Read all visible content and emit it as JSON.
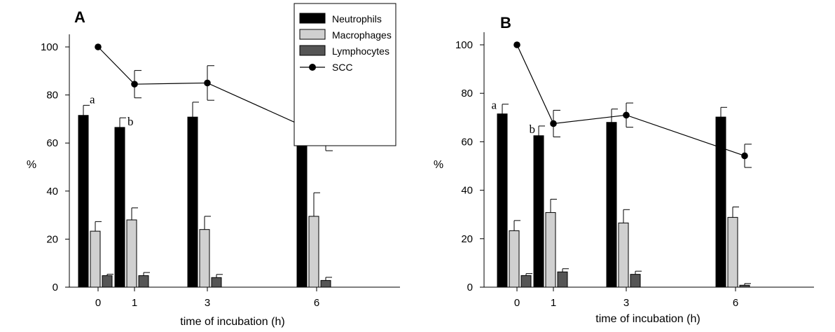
{
  "chart_data": [
    {
      "type": "bar",
      "panel_label": "A",
      "xlabel": "time of incubation (h)",
      "ylabel": "%",
      "ylim": [
        0,
        100
      ],
      "y_ticks": [
        "0",
        "20",
        "40",
        "60",
        "80",
        "100"
      ],
      "x": [
        0,
        1,
        3,
        6
      ],
      "x_tick_labels": [
        "0",
        "1",
        "3",
        "6"
      ],
      "legend_position": "top-center",
      "series": [
        {
          "name": "Neutrophils",
          "kind": "bar",
          "color": "#000000",
          "values": [
            71.5,
            66.5,
            70.8,
            67.2
          ],
          "err": [
            4.2,
            4.0,
            6.2,
            9.8
          ]
        },
        {
          "name": "Macrophages",
          "kind": "bar",
          "color": "#d0d0d0",
          "values": [
            23.3,
            28.0,
            24.0,
            29.5
          ],
          "err": [
            4.0,
            5.0,
            5.5,
            9.8
          ]
        },
        {
          "name": "Lymphocytes",
          "kind": "bar",
          "color": "#555555",
          "values": [
            4.8,
            4.8,
            4.0,
            2.8
          ],
          "err": [
            0.6,
            1.3,
            1.3,
            1.3
          ]
        },
        {
          "name": "SCC",
          "kind": "line",
          "color": "#000000",
          "values": [
            100,
            84.5,
            85.0,
            62.8
          ],
          "err": [
            0,
            5.7,
            7.2,
            6.0
          ]
        }
      ],
      "annotations": [
        {
          "text": "a",
          "x": 0
        },
        {
          "text": "b",
          "x": 1
        }
      ]
    },
    {
      "type": "bar",
      "panel_label": "B",
      "xlabel": "time of incubation (h)",
      "ylabel": "%",
      "ylim": [
        0,
        100
      ],
      "y_ticks": [
        "0",
        "20",
        "40",
        "60",
        "80",
        "100"
      ],
      "x": [
        0,
        1,
        3,
        6
      ],
      "x_tick_labels": [
        "0",
        "1",
        "3",
        "6"
      ],
      "series": [
        {
          "name": "Neutrophils",
          "kind": "bar",
          "color": "#000000",
          "values": [
            71.5,
            62.5,
            68.0,
            70.2
          ],
          "err": [
            4.0,
            4.0,
            5.5,
            4.0
          ]
        },
        {
          "name": "Macrophages",
          "kind": "bar",
          "color": "#d0d0d0",
          "values": [
            23.3,
            30.8,
            26.5,
            28.8
          ],
          "err": [
            4.2,
            5.5,
            5.5,
            4.3
          ]
        },
        {
          "name": "Lymphocytes",
          "kind": "bar",
          "color": "#555555",
          "values": [
            4.8,
            6.3,
            5.3,
            0.8
          ],
          "err": [
            0.8,
            1.3,
            1.3,
            0.7
          ]
        },
        {
          "name": "SCC",
          "kind": "line",
          "color": "#000000",
          "values": [
            100,
            67.5,
            71.0,
            54.2
          ],
          "err": [
            0,
            5.5,
            5.0,
            4.8
          ]
        }
      ],
      "annotations": [
        {
          "text": "a",
          "x": 0
        },
        {
          "text": "b",
          "x": 1
        }
      ]
    }
  ]
}
